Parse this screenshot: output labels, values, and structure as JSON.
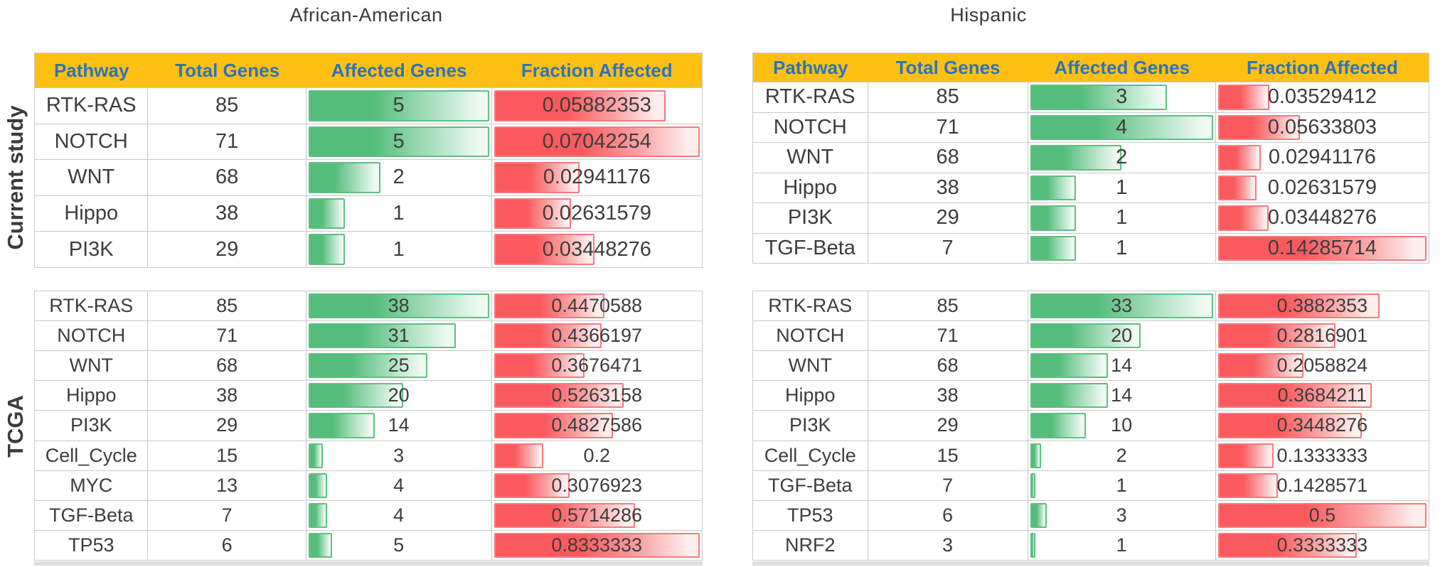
{
  "figure_titles": {
    "left": "African-American",
    "right": "Hispanic"
  },
  "row_group_labels": {
    "top": "Current study",
    "bottom": "TCGA"
  },
  "table_columns": [
    "Pathway",
    "Total Genes",
    "Affected Genes",
    "Fraction Affected"
  ],
  "colors": {
    "header_bg": "#ffc013",
    "header_text": "#2e73b8",
    "green_bar_solid": "#55bd7b",
    "green_bar_border": "#5ebf82",
    "red_bar_solid": "#fa5a5e",
    "red_bar_border": "#f8797d",
    "cell_text": "#3d3d3d",
    "grid_line": "#c9c9c9"
  },
  "chart_data": [
    {
      "id": "aa_current",
      "type": "table",
      "title": "African-American",
      "group": "Current study",
      "columns": [
        "Pathway",
        "Total Genes",
        "Affected Genes",
        "Fraction Affected"
      ],
      "bar_scaling": "data bar length = value / column max within this table",
      "rows": [
        [
          "RTK-RAS",
          85,
          5,
          "0.05882353"
        ],
        [
          "NOTCH",
          71,
          5,
          "0.07042254"
        ],
        [
          "WNT",
          68,
          2,
          "0.02941176"
        ],
        [
          "Hippo",
          38,
          1,
          "0.02631579"
        ],
        [
          "PI3K",
          29,
          1,
          "0.03448276"
        ]
      ]
    },
    {
      "id": "aa_tcga",
      "type": "table",
      "title": "African-American",
      "group": "TCGA",
      "columns": [
        "Pathway",
        "Total Genes",
        "Affected Genes",
        "Fraction Affected"
      ],
      "bar_scaling": "data bar length = value / column max within this table",
      "rows": [
        [
          "RTK-RAS",
          85,
          38,
          "0.4470588"
        ],
        [
          "NOTCH",
          71,
          31,
          "0.4366197"
        ],
        [
          "WNT",
          68,
          25,
          "0.3676471"
        ],
        [
          "Hippo",
          38,
          20,
          "0.5263158"
        ],
        [
          "PI3K",
          29,
          14,
          "0.4827586"
        ],
        [
          "Cell_Cycle",
          15,
          3,
          "0.2"
        ],
        [
          "MYC",
          13,
          4,
          "0.3076923"
        ],
        [
          "TGF-Beta",
          7,
          4,
          "0.5714286"
        ],
        [
          "TP53",
          6,
          5,
          "0.8333333"
        ]
      ]
    },
    {
      "id": "hisp_current",
      "type": "table",
      "title": "Hispanic",
      "group": "Current study",
      "columns": [
        "Pathway",
        "Total Genes",
        "Affected Genes",
        "Fraction Affected"
      ],
      "bar_scaling": "data bar length = value / column max within this table",
      "rows": [
        [
          "RTK-RAS",
          85,
          3,
          "0.03529412"
        ],
        [
          "NOTCH",
          71,
          4,
          "0.05633803"
        ],
        [
          "WNT",
          68,
          2,
          "0.02941176"
        ],
        [
          "Hippo",
          38,
          1,
          "0.02631579"
        ],
        [
          "PI3K",
          29,
          1,
          "0.03448276"
        ],
        [
          "TGF-Beta",
          7,
          1,
          "0.14285714"
        ]
      ]
    },
    {
      "id": "hisp_tcga",
      "type": "table",
      "title": "Hispanic",
      "group": "TCGA",
      "columns": [
        "Pathway",
        "Total Genes",
        "Affected Genes",
        "Fraction Affected"
      ],
      "bar_scaling": "data bar length = value / column max within this table",
      "rows": [
        [
          "RTK-RAS",
          85,
          33,
          "0.3882353"
        ],
        [
          "NOTCH",
          71,
          20,
          "0.2816901"
        ],
        [
          "WNT",
          68,
          14,
          "0.2058824"
        ],
        [
          "Hippo",
          38,
          14,
          "0.3684211"
        ],
        [
          "PI3K",
          29,
          10,
          "0.3448276"
        ],
        [
          "Cell_Cycle",
          15,
          2,
          "0.1333333"
        ],
        [
          "TGF-Beta",
          7,
          1,
          "0.1428571"
        ],
        [
          "TP53",
          6,
          3,
          "0.5"
        ],
        [
          "NRF2",
          3,
          1,
          "0.3333333"
        ]
      ]
    }
  ]
}
